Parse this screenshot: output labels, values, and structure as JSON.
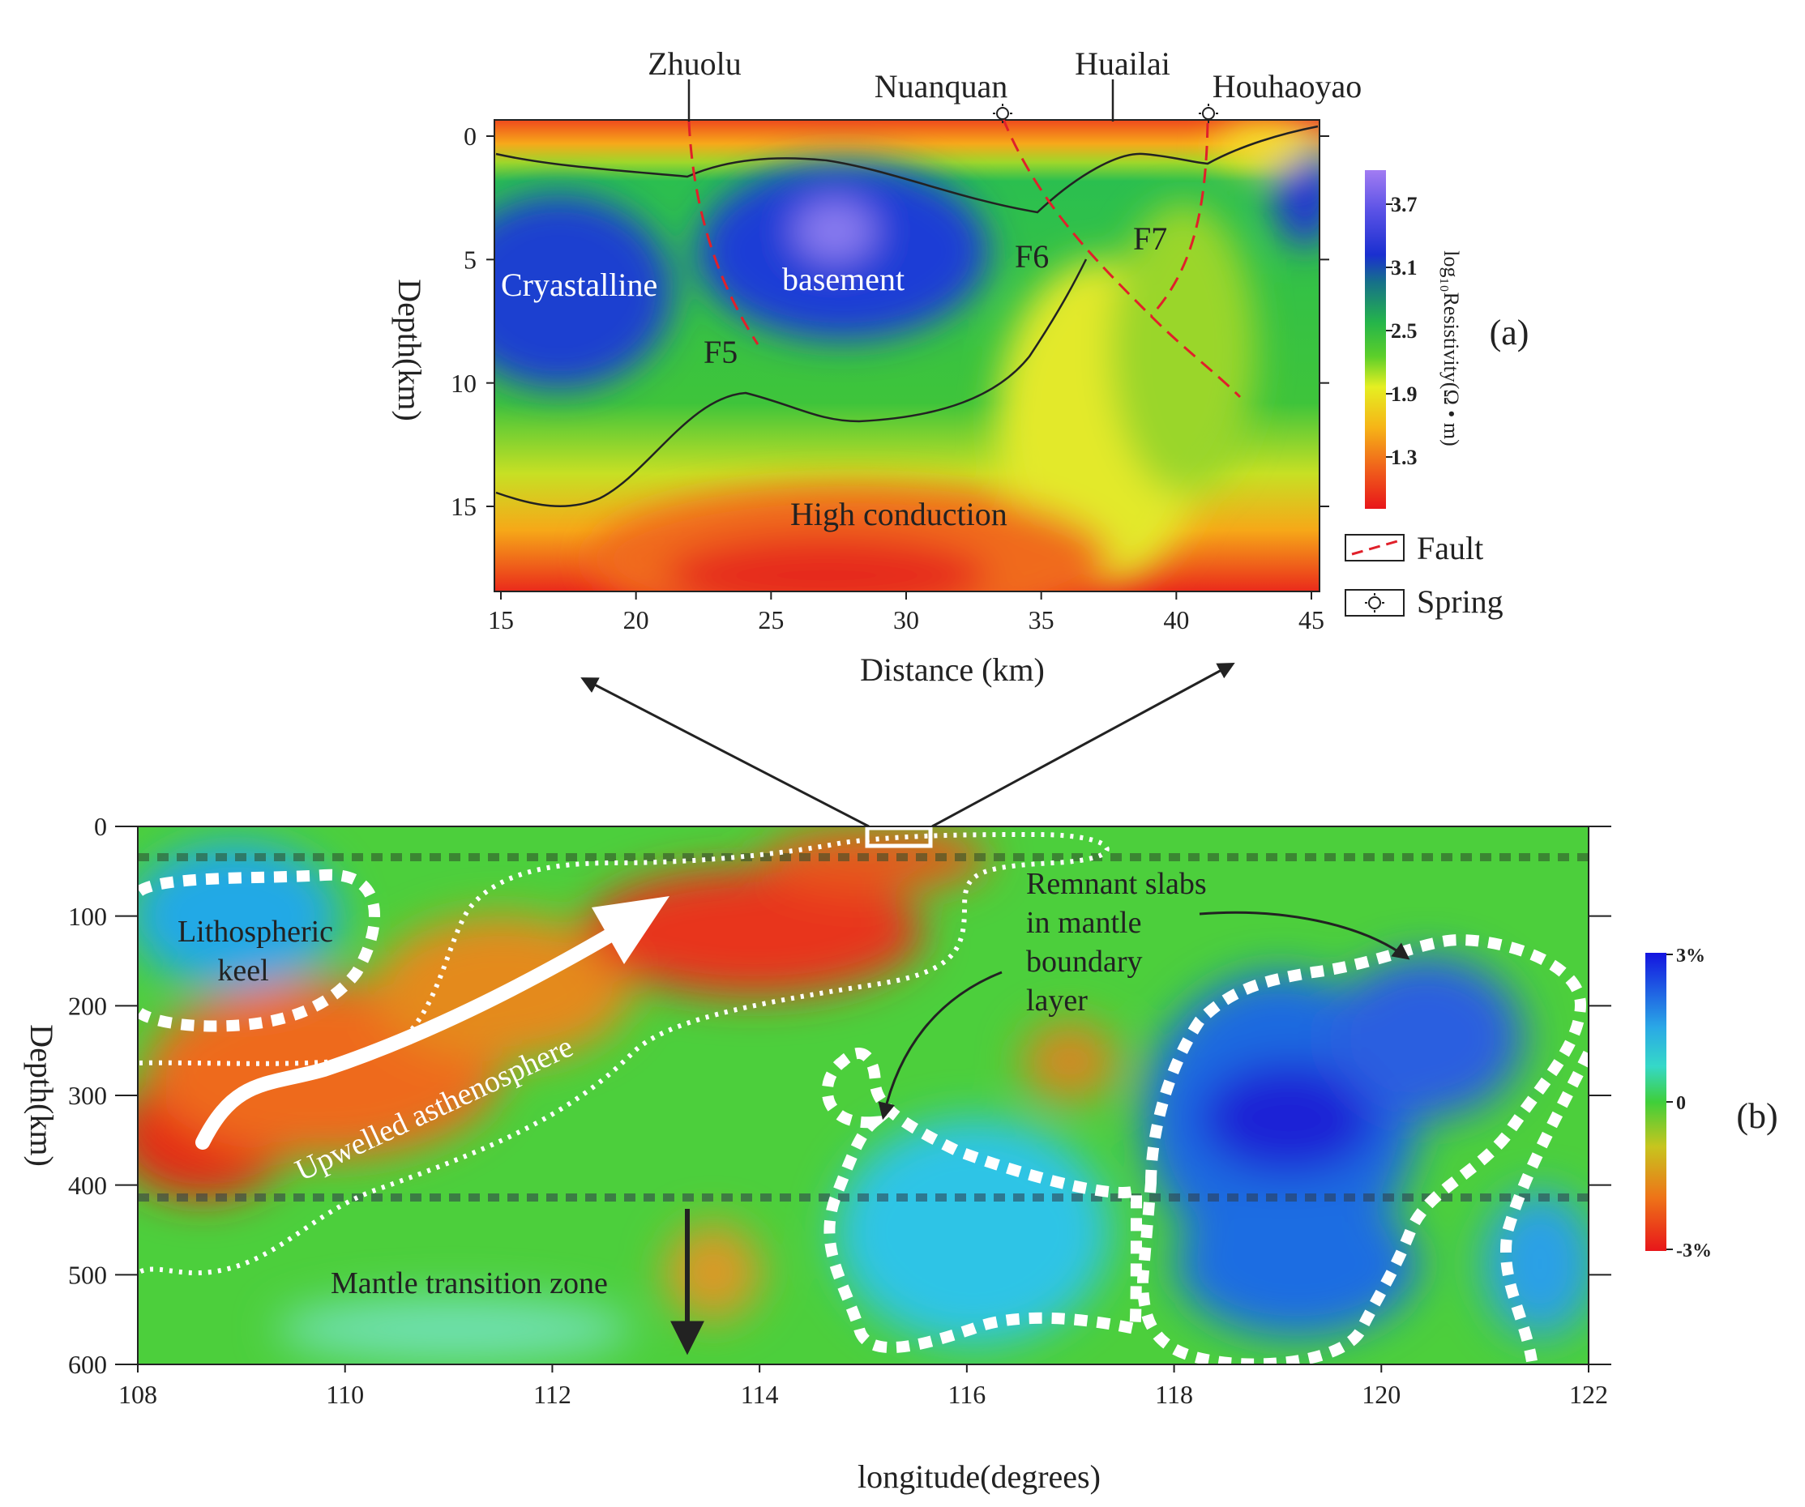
{
  "panel_a": {
    "panel_label": "(a)",
    "x_axis_label": "Distance (km)",
    "y_axis_label": "Depth(km)",
    "x_ticks": [
      "15",
      "20",
      "25",
      "30",
      "35",
      "40",
      "45"
    ],
    "y_ticks": [
      "0",
      "5",
      "10",
      "15"
    ],
    "places": {
      "zhuolu": "Zhuolu",
      "nuanquan": "Nuanquan",
      "huailai": "Huailai",
      "houhaoyao": "Houhaoyao"
    },
    "faults": [
      "F5",
      "F6",
      "F7"
    ],
    "region_labels": {
      "crystalline": "Cryastalline",
      "basement": "basement",
      "high_conduction": "High conduction"
    },
    "colorbar_ticks": [
      "3.7",
      "3.1",
      "2.5",
      "1.9",
      "1.3"
    ],
    "colorbar_label": "log₁₀Resistivity(Ω • m)",
    "legend": {
      "fault": "Fault",
      "spring": "Spring"
    },
    "colors": {
      "fault_line": "#e0202a",
      "low_resistivity": "#e8231c",
      "high_resistivity": "#1a2fd0"
    }
  },
  "panel_b": {
    "panel_label": "(b)",
    "x_axis_label": "longitude(degrees)",
    "y_axis_label": "Depth(km)",
    "x_ticks": [
      "108",
      "110",
      "112",
      "114",
      "116",
      "118",
      "120",
      "122"
    ],
    "y_ticks": [
      "0",
      "100",
      "200",
      "300",
      "400",
      "500",
      "600"
    ],
    "labels": {
      "lithospheric_keel": [
        "Lithospheric",
        "keel"
      ],
      "upwelled": "Upwelled asthenosphere",
      "remnant_slabs": [
        "Remnant slabs",
        "in mantle",
        "boundary",
        "layer"
      ],
      "mantle_transition_zone": "Mantle transition zone"
    },
    "colorbar_ticks": [
      "3%",
      "0",
      "-3%"
    ],
    "colors": {
      "fast": "#1e22d8",
      "slow": "#e62a18",
      "neutral": "#3fcf3a"
    }
  }
}
